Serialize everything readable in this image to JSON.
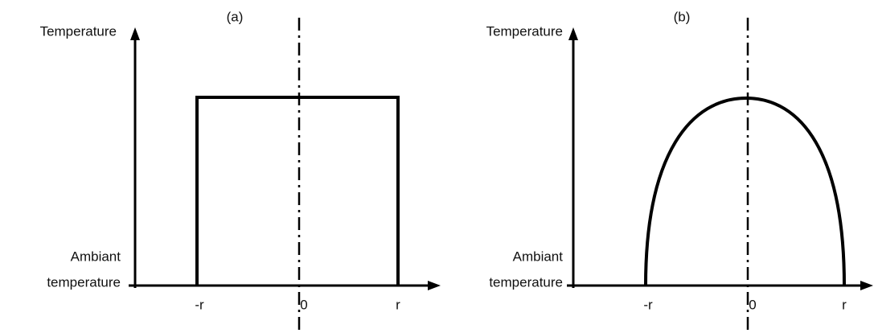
{
  "panels": [
    {
      "label": "(a)",
      "y_axis_label": "Temperature",
      "baseline_label": [
        "Ambiant",
        "temperature"
      ],
      "x_ticks": [
        "-r",
        "0",
        "r"
      ]
    },
    {
      "label": "(b)",
      "y_axis_label": "Temperature",
      "baseline_label": [
        "Ambiant",
        "temperature"
      ],
      "x_ticks": [
        "-r",
        "0",
        "r"
      ]
    }
  ]
}
